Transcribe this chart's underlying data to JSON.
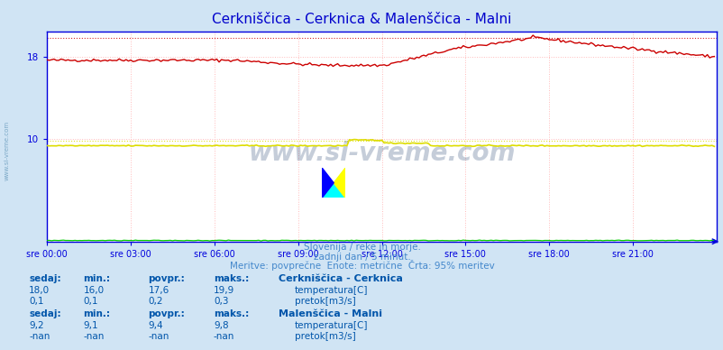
{
  "title": "Cerkniščica - Cerknica & Malenščica - Malni",
  "title_color": "#0000cc",
  "bg_color": "#d0e4f4",
  "plot_bg_color": "#ffffff",
  "grid_color": "#ffbbbb",
  "axis_color": "#0000dd",
  "subtitle1": "Slovenija / reke in morje.",
  "subtitle2": "zadnji dan / 5 minut.",
  "subtitle3": "Meritve: povprečne  Enote: metrične  Črta: 95% meritev",
  "xlabel_ticks": [
    "sre 00:00",
    "sre 03:00",
    "sre 06:00",
    "sre 09:00",
    "sre 12:00",
    "sre 15:00",
    "sre 18:00",
    "sre 21:00"
  ],
  "ytick_labels": [
    "10",
    "18"
  ],
  "ytick_values": [
    10,
    18
  ],
  "ylim": [
    0,
    20.5
  ],
  "xlim": [
    0,
    288
  ],
  "watermark": "www.si-vreme.com",
  "watermark_color": "#1a3a6a",
  "station1_name": "Cerkniščica - Cerknica",
  "station1_temp_color": "#cc0000",
  "station1_flow_color": "#00cc00",
  "station1_temp_label": "temperatura[C]",
  "station1_flow_label": "pretok[m3/s]",
  "station1_sedaj": "18,0",
  "station1_min": "16,0",
  "station1_povpr": "17,6",
  "station1_maks": "19,9",
  "station1_flow_sedaj": "0,1",
  "station1_flow_min": "0,1",
  "station1_flow_povpr": "0,2",
  "station1_flow_maks": "0,3",
  "station2_name": "Malenščica - Malni",
  "station2_temp_color": "#dddd00",
  "station2_flow_color": "#cc00cc",
  "station2_temp_label": "temperatura[C]",
  "station2_flow_label": "pretok[m3/s]",
  "station2_sedaj": "9,2",
  "station2_min": "9,1",
  "station2_povpr": "9,4",
  "station2_maks": "9,8",
  "station2_flow_sedaj": "-nan",
  "station2_flow_min": "-nan",
  "station2_flow_povpr": "-nan",
  "station2_flow_maks": "-nan",
  "table_header": [
    "sedaj:",
    "min.:",
    "povpr.:",
    "maks.:"
  ],
  "table_color": "#0000aa",
  "n_points": 288,
  "max1_y": 19.9,
  "max2_y": 9.8,
  "side_label": "www.si-vreme.com"
}
